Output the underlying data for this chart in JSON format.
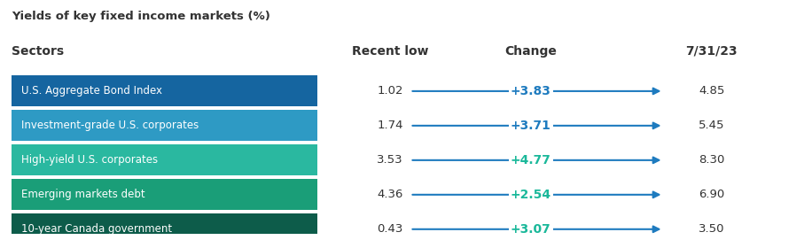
{
  "title": "Yields of key fixed income markets (%)",
  "col_headers": [
    "Sectors",
    "Recent low",
    "Change",
    "7/31/23"
  ],
  "rows": [
    {
      "sector": "U.S. Aggregate Bond Index",
      "recent_low": "1.02",
      "change": "+3.83",
      "current": "4.85",
      "box_color": "#1565a0",
      "change_color": "#1e7bbf"
    },
    {
      "sector": "Investment-grade U.S. corporates",
      "recent_low": "1.74",
      "change": "+3.71",
      "current": "5.45",
      "box_color": "#2e9ac4",
      "change_color": "#1e7bbf"
    },
    {
      "sector": "High-yield U.S. corporates",
      "recent_low": "3.53",
      "change": "+4.77",
      "current": "8.30",
      "box_color": "#2ab8a0",
      "change_color": "#1ab89a"
    },
    {
      "sector": "Emerging markets debt",
      "recent_low": "4.36",
      "change": "+2.54",
      "current": "6.90",
      "box_color": "#1a9e78",
      "change_color": "#1ab89a"
    },
    {
      "sector": "10-year Canada government",
      "recent_low": "0.43",
      "change": "+3.07",
      "current": "3.50",
      "box_color": "#0d5c4a",
      "change_color": "#1ab89a"
    }
  ],
  "header_color": "#333333",
  "background_color": "#ffffff",
  "text_color_light": "#ffffff",
  "arrow_color": "#1e7bbf",
  "figsize": [
    9.16,
    2.71
  ],
  "dpi": 100
}
